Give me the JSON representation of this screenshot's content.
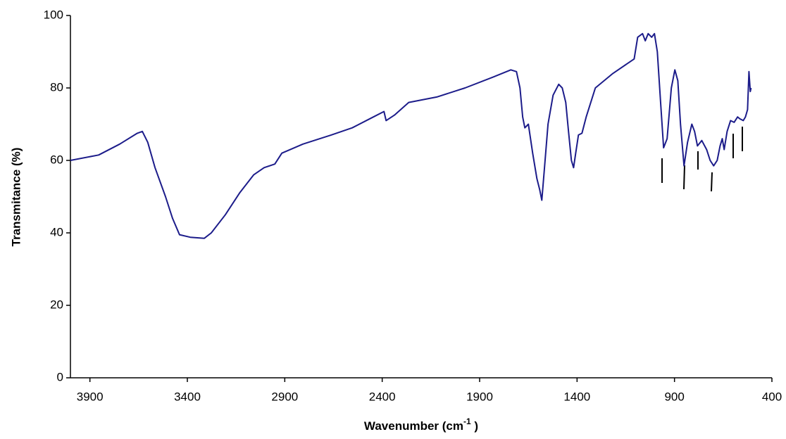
{
  "chart_data": {
    "type": "line",
    "x_label": {
      "text": "Wavenumber (cm",
      "sup": "-1",
      "tail": " )"
    },
    "y_label": "Transmitance (%)",
    "xlim": [
      4000,
      400
    ],
    "xticks": [
      3900,
      3400,
      2900,
      2400,
      1900,
      1400,
      900,
      400
    ],
    "ylim": [
      0,
      100
    ],
    "yticks": [
      0,
      20,
      40,
      60,
      80,
      100
    ],
    "grid": false,
    "series": [
      {
        "color": "#1c1c8a",
        "x": [
          4000,
          3855,
          3747,
          3657,
          3631,
          3603,
          3566,
          3512,
          3476,
          3440,
          3385,
          3313,
          3277,
          3205,
          3132,
          3060,
          3006,
          2951,
          2915,
          2807,
          2662,
          2554,
          2445,
          2391,
          2380,
          2337,
          2264,
          2120,
          1975,
          1831,
          1740,
          1711,
          1693,
          1679,
          1668,
          1650,
          1628,
          1606,
          1592,
          1581,
          1567,
          1549,
          1523,
          1494,
          1476,
          1458,
          1444,
          1429,
          1418,
          1407,
          1393,
          1375,
          1353,
          1306,
          1216,
          1107,
          1089,
          1064,
          1050,
          1035,
          1017,
          1003,
          988,
          970,
          956,
          938,
          916,
          898,
          883,
          869,
          851,
          833,
          811,
          797,
          782,
          760,
          735,
          717,
          699,
          681,
          666,
          655,
          645,
          630,
          612,
          594,
          576,
          565,
          547,
          536,
          525,
          518,
          511,
          507
        ],
        "values": [
          60,
          61.5,
          64.5,
          67.5,
          68,
          65,
          58,
          50,
          44,
          39.5,
          38.8,
          38.5,
          40,
          45,
          51,
          56,
          58,
          59,
          62,
          64.5,
          67,
          69,
          72,
          73.5,
          71,
          72.5,
          76,
          77.5,
          80,
          83,
          85,
          84.5,
          80,
          72,
          69,
          70,
          62,
          55,
          52,
          49,
          58,
          70,
          78,
          81,
          80,
          76,
          68,
          60,
          58,
          62,
          67,
          67.5,
          72,
          80,
          84,
          88,
          94,
          95,
          93,
          95,
          94,
          95,
          90,
          75,
          63.5,
          66,
          80,
          85,
          82,
          70,
          58.5,
          65,
          70,
          68,
          64,
          65.5,
          63,
          60,
          58.5,
          60,
          64,
          66,
          63,
          68,
          71,
          70.5,
          72,
          71.5,
          71,
          72,
          74,
          84.5,
          79,
          80
        ]
      }
    ]
  }
}
